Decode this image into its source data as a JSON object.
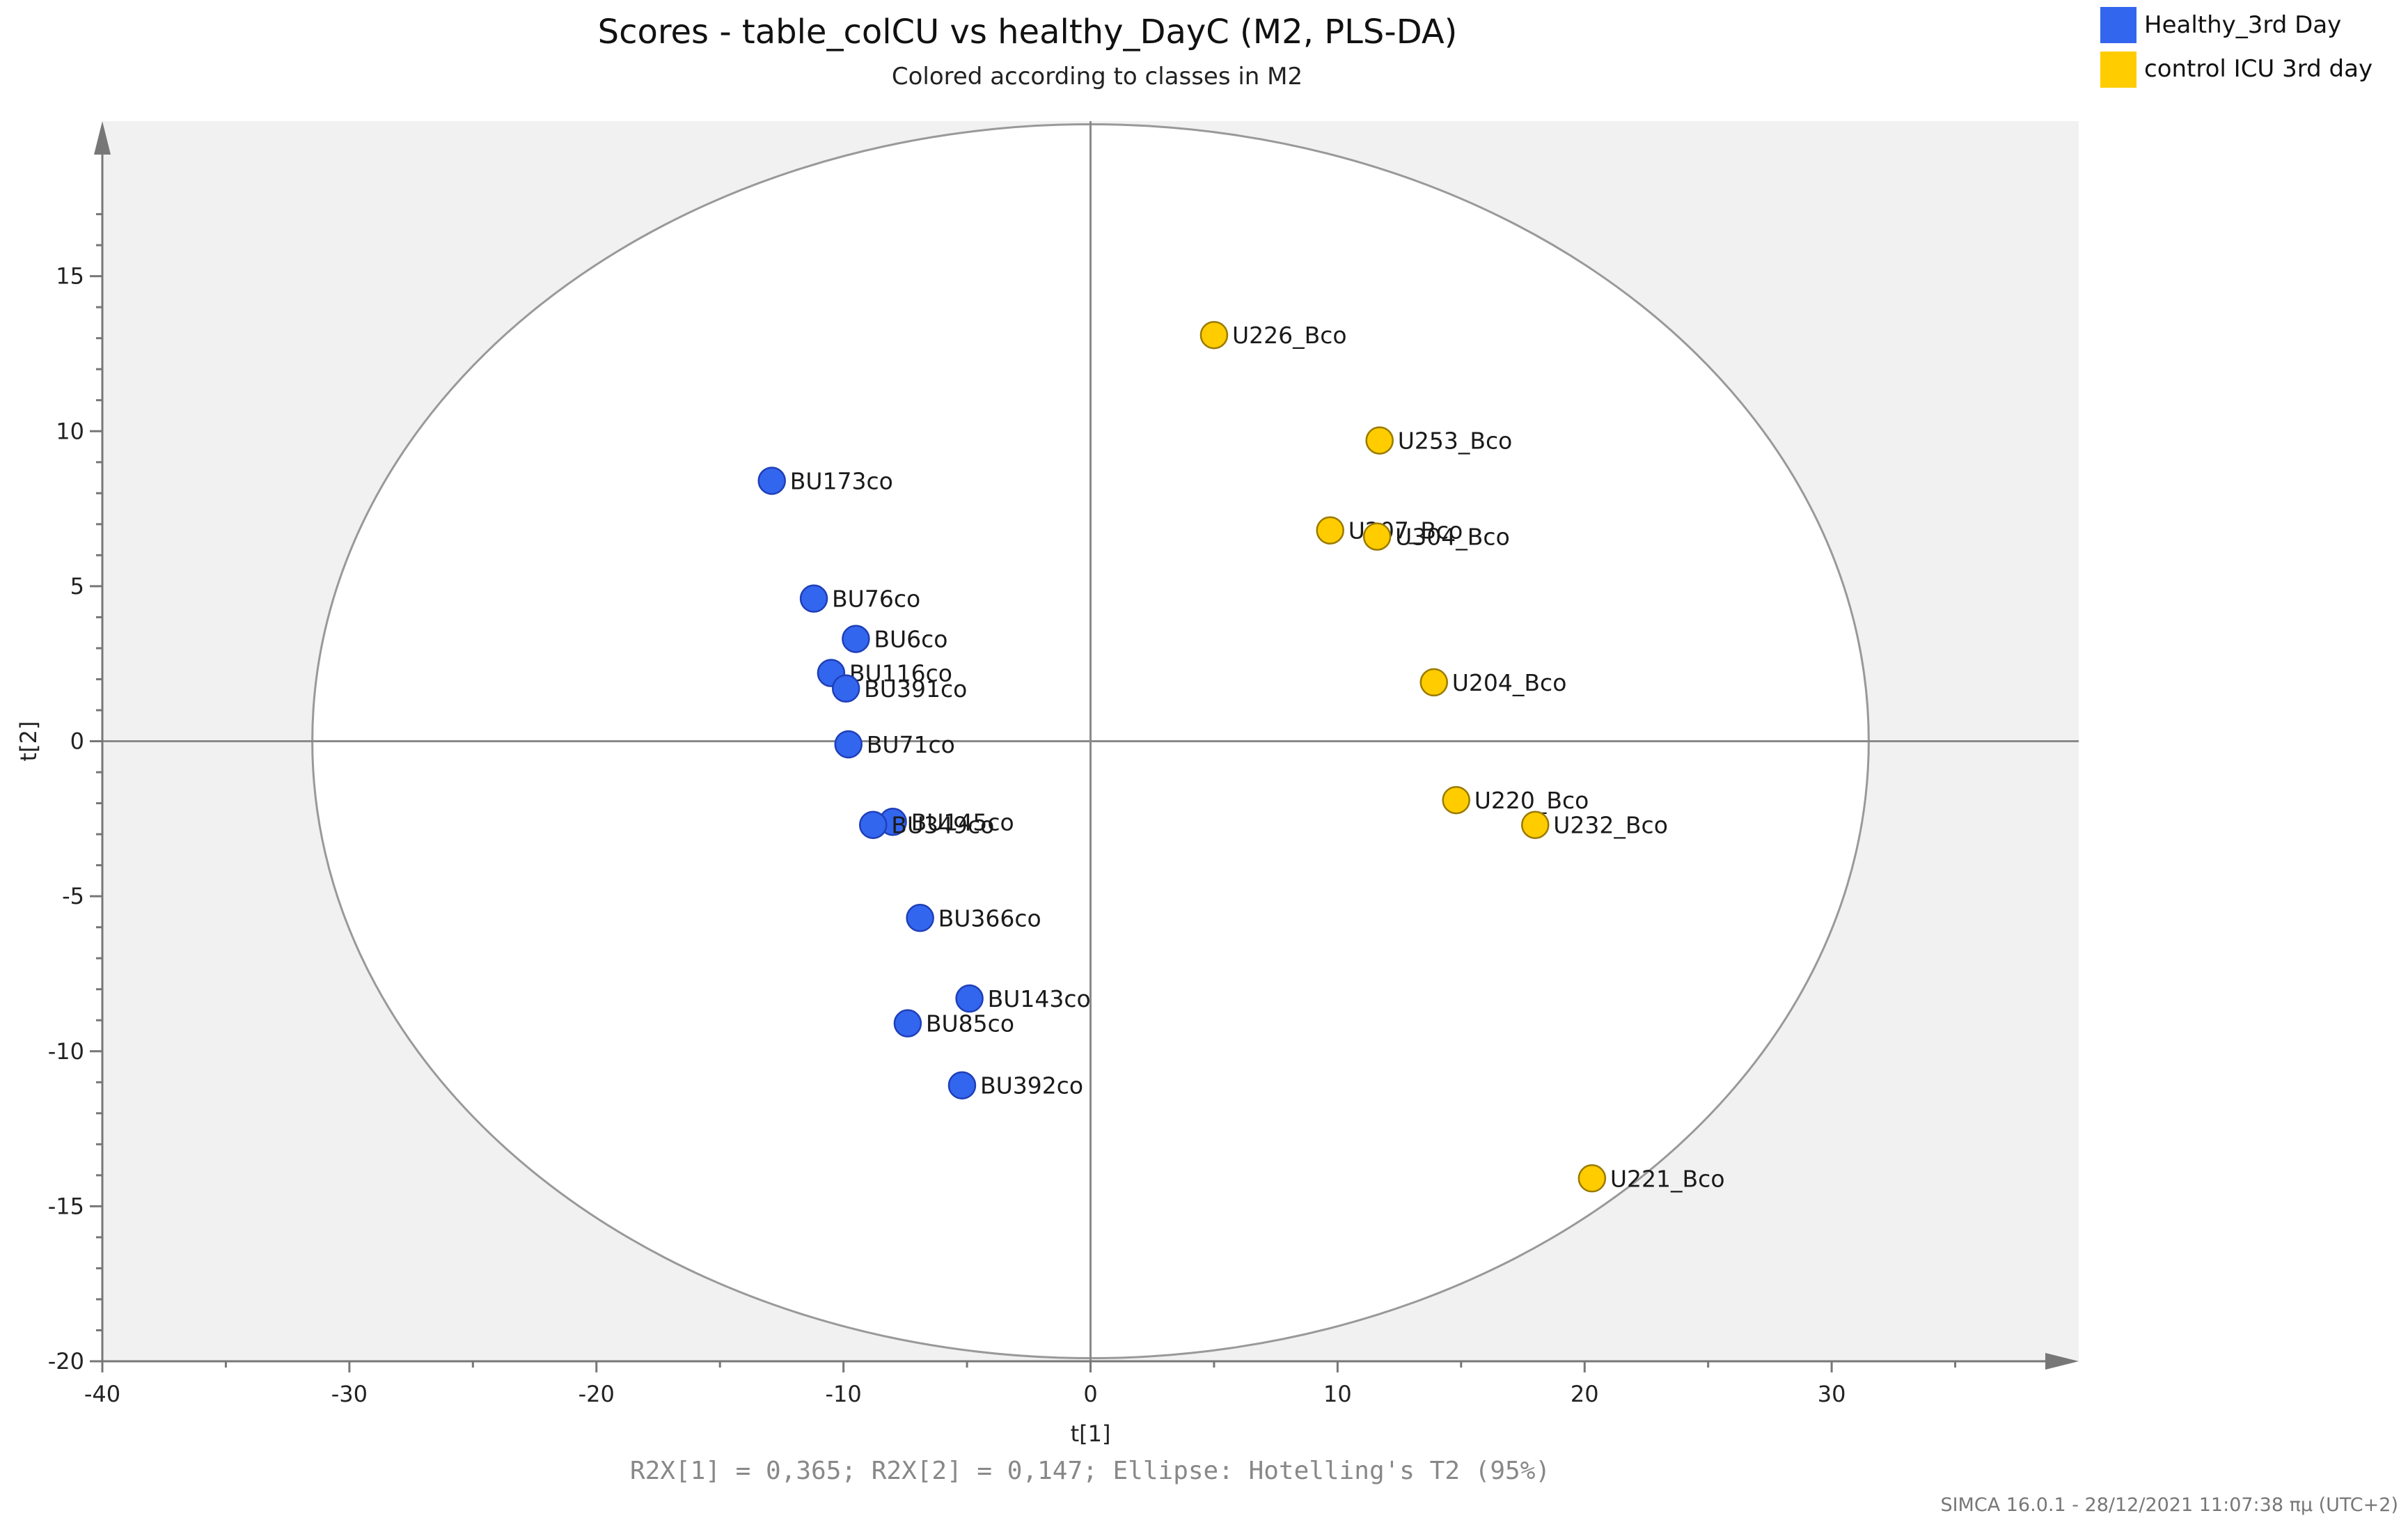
{
  "chart_data": {
    "type": "scatter",
    "title": "Scores - table_colCU vs healthy_DayC (M2, PLS-DA)",
    "subtitle": "Colored according to classes in M2",
    "xlabel": "t[1]",
    "ylabel": "t[2]",
    "xlim": [
      -40,
      40
    ],
    "ylim": [
      -20,
      20
    ],
    "xticks": [
      -40,
      -30,
      -20,
      -10,
      0,
      10,
      20,
      30
    ],
    "yticks": [
      -20,
      -15,
      -10,
      -5,
      0,
      5,
      10,
      15
    ],
    "xtick_labels": [
      "-40",
      "-30",
      "-20",
      "-10",
      "0",
      "10",
      "20",
      "30"
    ],
    "ytick_labels": [
      "-20",
      "-15",
      "-10",
      "-5",
      "0",
      "5",
      "10",
      "15"
    ],
    "grid": false,
    "legend_position": "top-right",
    "ellipse": {
      "center": [
        0,
        0
      ],
      "semi_axis_x": 31.5,
      "semi_axis_y": 19.9,
      "label": "Hotelling's T2 (95%)"
    },
    "footnote": "R2X[1] = 0,365; R2X[2] = 0,147; Ellipse: Hotelling's T2 (95%)",
    "series": [
      {
        "name": "Healthy_3rd Day",
        "color": "#3366ee",
        "points": [
          {
            "label": "BU173co",
            "x": -12.9,
            "y": 8.4
          },
          {
            "label": "BU76co",
            "x": -11.2,
            "y": 4.6
          },
          {
            "label": "BU6co",
            "x": -9.5,
            "y": 3.3
          },
          {
            "label": "BU116co",
            "x": -10.5,
            "y": 2.2
          },
          {
            "label": "BU391co",
            "x": -9.9,
            "y": 1.7
          },
          {
            "label": "BU71co",
            "x": -9.8,
            "y": -0.1
          },
          {
            "label": "BU145co",
            "x": -8.0,
            "y": -2.6
          },
          {
            "label": "BU349co",
            "x": -8.8,
            "y": -2.7
          },
          {
            "label": "BU366co",
            "x": -6.9,
            "y": -5.7
          },
          {
            "label": "BU143co",
            "x": -4.9,
            "y": -8.3
          },
          {
            "label": "BU85co",
            "x": -7.4,
            "y": -9.1
          },
          {
            "label": "BU392co",
            "x": -5.2,
            "y": -11.1
          }
        ]
      },
      {
        "name": "control ICU 3rd day",
        "color": "#ffcc00",
        "points": [
          {
            "label": "U226_Bco",
            "x": 5.0,
            "y": 13.1
          },
          {
            "label": "U253_Bco",
            "x": 11.7,
            "y": 9.7
          },
          {
            "label": "U207_Bco",
            "x": 9.7,
            "y": 6.8
          },
          {
            "label": "U304_Bco",
            "x": 11.6,
            "y": 6.6
          },
          {
            "label": "U204_Bco",
            "x": 13.9,
            "y": 1.9
          },
          {
            "label": "U220_Bco",
            "x": 14.8,
            "y": -1.9
          },
          {
            "label": "U232_Bco",
            "x": 18.0,
            "y": -2.7
          },
          {
            "label": "U221_Bco",
            "x": 20.3,
            "y": -14.1
          }
        ]
      }
    ]
  },
  "footer": "SIMCA 16.0.1 - 28/12/2021 11:07:38 πμ (UTC+2)"
}
